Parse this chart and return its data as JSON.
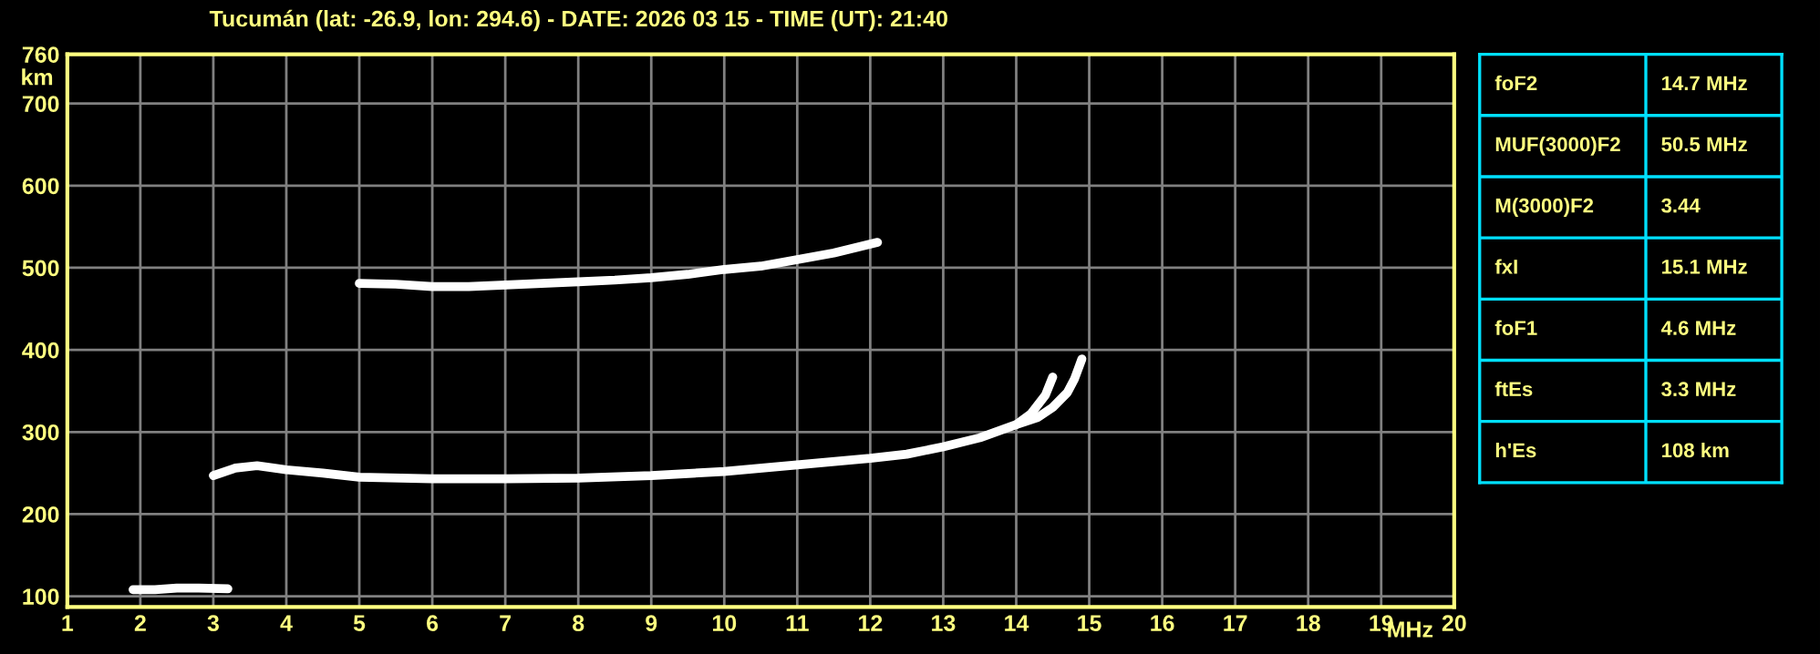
{
  "chart_data": [
    {
      "type": "line",
      "title": "Tucumán (lat: -26.9, lon: 294.6) - DATE: 2026 03 15 - TIME (UT): 21:40",
      "xlabel": "MHz",
      "ylabel": "km",
      "xlim": [
        1,
        20
      ],
      "xticks": [
        1,
        2,
        3,
        4,
        5,
        6,
        7,
        8,
        9,
        10,
        11,
        12,
        13,
        14,
        15,
        16,
        17,
        18,
        19,
        20
      ],
      "ylim": [
        87,
        760
      ],
      "yticks": [
        100,
        200,
        300,
        400,
        500,
        600,
        700,
        760
      ],
      "grid": true,
      "marker": "none",
      "line_style": "solid",
      "series": [
        {
          "color": "#ffffff",
          "x": [
            3.0,
            3.3,
            3.6,
            4.0,
            4.5,
            5.0,
            6.0,
            7.0,
            8.0,
            9.0,
            10.0,
            11.0,
            12.0,
            12.5,
            13.0,
            13.5,
            14.0,
            14.2,
            14.4,
            14.5
          ],
          "values": [
            247,
            256,
            259,
            254,
            250,
            245,
            243,
            243,
            244,
            247,
            252,
            260,
            268,
            273,
            282,
            293,
            309,
            322,
            345,
            367
          ]
        },
        {
          "color": "#ffffff",
          "x": [
            14.0,
            14.3,
            14.5,
            14.7,
            14.8,
            14.9
          ],
          "values": [
            309,
            318,
            330,
            348,
            365,
            389
          ]
        },
        {
          "color": "#ffffff",
          "x": [
            5.0,
            5.5,
            6.0,
            6.5,
            7.0,
            8.0,
            8.5,
            9.0,
            9.5,
            10.0,
            10.5,
            11.0,
            11.5,
            12.1
          ],
          "values": [
            481,
            480,
            477,
            477,
            479,
            483,
            485,
            488,
            492,
            498,
            502,
            510,
            518,
            531
          ]
        },
        {
          "color": "#ffffff",
          "x": [
            1.9,
            2.2,
            2.5,
            2.8,
            3.2
          ],
          "values": [
            108,
            108,
            110,
            110,
            109
          ]
        }
      ]
    },
    {
      "type": "other",
      "annotations": [
        "foF2",
        "14.7 MHz",
        "MUF(3000)F2",
        "50.5 MHz",
        "M(3000)F2",
        "3.44",
        "fxI",
        "15.1 MHz",
        "foF1",
        "4.6 MHz",
        "ftEs",
        "3.3 MHz",
        "h'Es",
        "108 km"
      ]
    }
  ]
}
